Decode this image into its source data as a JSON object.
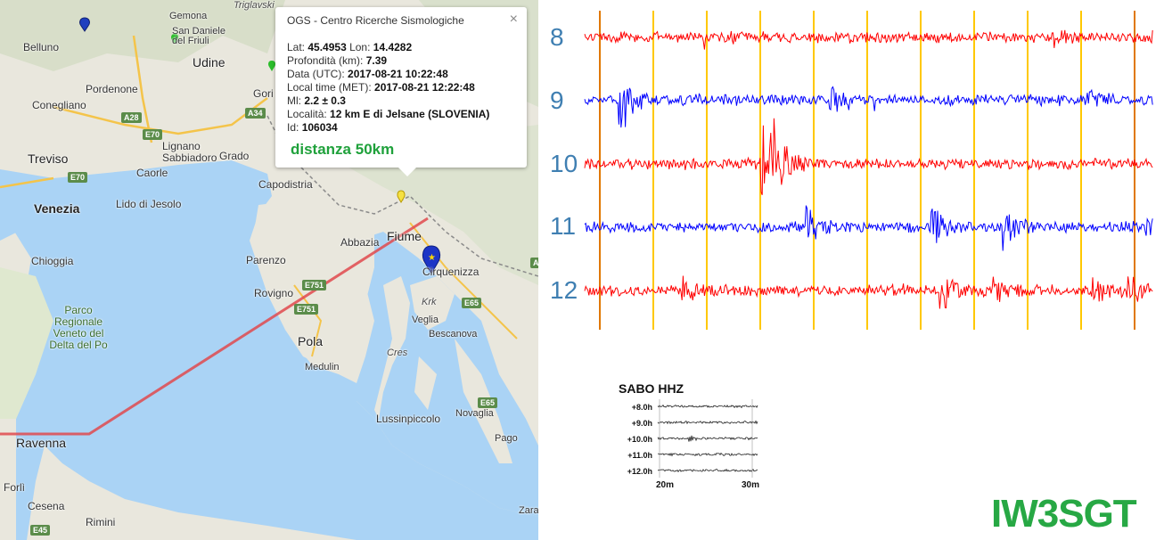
{
  "map": {
    "places": [
      {
        "id": "belluno",
        "label": "Belluno"
      },
      {
        "id": "gemona",
        "label": "Gemona"
      },
      {
        "id": "sandaniele",
        "label": "San Daniele del Friuli"
      },
      {
        "id": "udine",
        "label": "Udine"
      },
      {
        "id": "pordenone",
        "label": "Pordenone"
      },
      {
        "id": "conegliano",
        "label": "Conegliano"
      },
      {
        "id": "treviso",
        "label": "Treviso"
      },
      {
        "id": "lignano",
        "label": "Lignano Sabbiadoro"
      },
      {
        "id": "caorle",
        "label": "Caorle"
      },
      {
        "id": "grado",
        "label": "Grado"
      },
      {
        "id": "venezia",
        "label": "Venezia"
      },
      {
        "id": "jesolo",
        "label": "Lido di Jesolo"
      },
      {
        "id": "chioggia",
        "label": "Chioggia"
      },
      {
        "id": "capodistria",
        "label": "Capodistria"
      },
      {
        "id": "fiume",
        "label": "Fiume"
      },
      {
        "id": "abbazia",
        "label": "Abbazia"
      },
      {
        "id": "cirquenizza",
        "label": "Cirquenizza"
      },
      {
        "id": "parenzo",
        "label": "Parenzo"
      },
      {
        "id": "rovigno",
        "label": "Rovigno"
      },
      {
        "id": "pola",
        "label": "Pola"
      },
      {
        "id": "medulin",
        "label": "Medulin"
      },
      {
        "id": "krk",
        "label": "Krk"
      },
      {
        "id": "veglia",
        "label": "Veglia"
      },
      {
        "id": "bescanova",
        "label": "Bescanova"
      },
      {
        "id": "cres",
        "label": "Cres"
      },
      {
        "id": "lussin",
        "label": "Lussinpiccolo"
      },
      {
        "id": "novaglia",
        "label": "Novaglia"
      },
      {
        "id": "pago",
        "label": "Pago"
      },
      {
        "id": "ravenna",
        "label": "Ravenna"
      },
      {
        "id": "forli",
        "label": "Forlì"
      },
      {
        "id": "cesena",
        "label": "Cesena"
      },
      {
        "id": "rimini",
        "label": "Rimini"
      },
      {
        "id": "zara",
        "label": "Zara"
      },
      {
        "id": "gorizia",
        "label": "Gori"
      },
      {
        "id": "triglav",
        "label": "Triglavski"
      }
    ],
    "park_label": "Parco Regionale Veneto del Delta del Po",
    "road_shields": [
      "A28",
      "E70",
      "A34",
      "E70",
      "E751",
      "E751",
      "E65",
      "E65",
      "E45",
      "A"
    ]
  },
  "popup": {
    "title": "OGS - Centro Ricerche Sismologiche",
    "close_glyph": "×",
    "rows": [
      {
        "label": "Lat: ",
        "value": "45.4953",
        "label2": " Lon: ",
        "value2": "14.4282"
      },
      {
        "label": "Profondità (km): ",
        "value": "7.39"
      },
      {
        "label": "Data (UTC): ",
        "value": "2017-08-21 10:22:48"
      },
      {
        "label": "Local time (MET): ",
        "value": "2017-08-21 12:22:48"
      },
      {
        "label": "Ml: ",
        "value": "2.2 ± 0.3"
      },
      {
        "label": "Località: ",
        "value": "12 km E di Jelsane (SLOVENIA)"
      },
      {
        "label": "Id: ",
        "value": "106034"
      }
    ],
    "distance": "distanza 50km"
  },
  "seismogram": {
    "traces": [
      {
        "label": "8",
        "color": "#ff0000"
      },
      {
        "label": "9",
        "color": "#0000ff"
      },
      {
        "label": "10",
        "color": "#ff0000"
      },
      {
        "label": "11",
        "color": "#0000ff"
      },
      {
        "label": "12",
        "color": "#ff0000"
      }
    ],
    "marker_colors": {
      "orange": "#e07800",
      "yellow": "#ffc800"
    }
  },
  "miniature": {
    "title": "SABO HHZ",
    "rows": [
      "+8.0h",
      "+9.0h",
      "+10.0h",
      "+11.0h",
      "+12.0h"
    ],
    "ticks": [
      "20m",
      "30m"
    ]
  },
  "callsign": "IW3SGT"
}
